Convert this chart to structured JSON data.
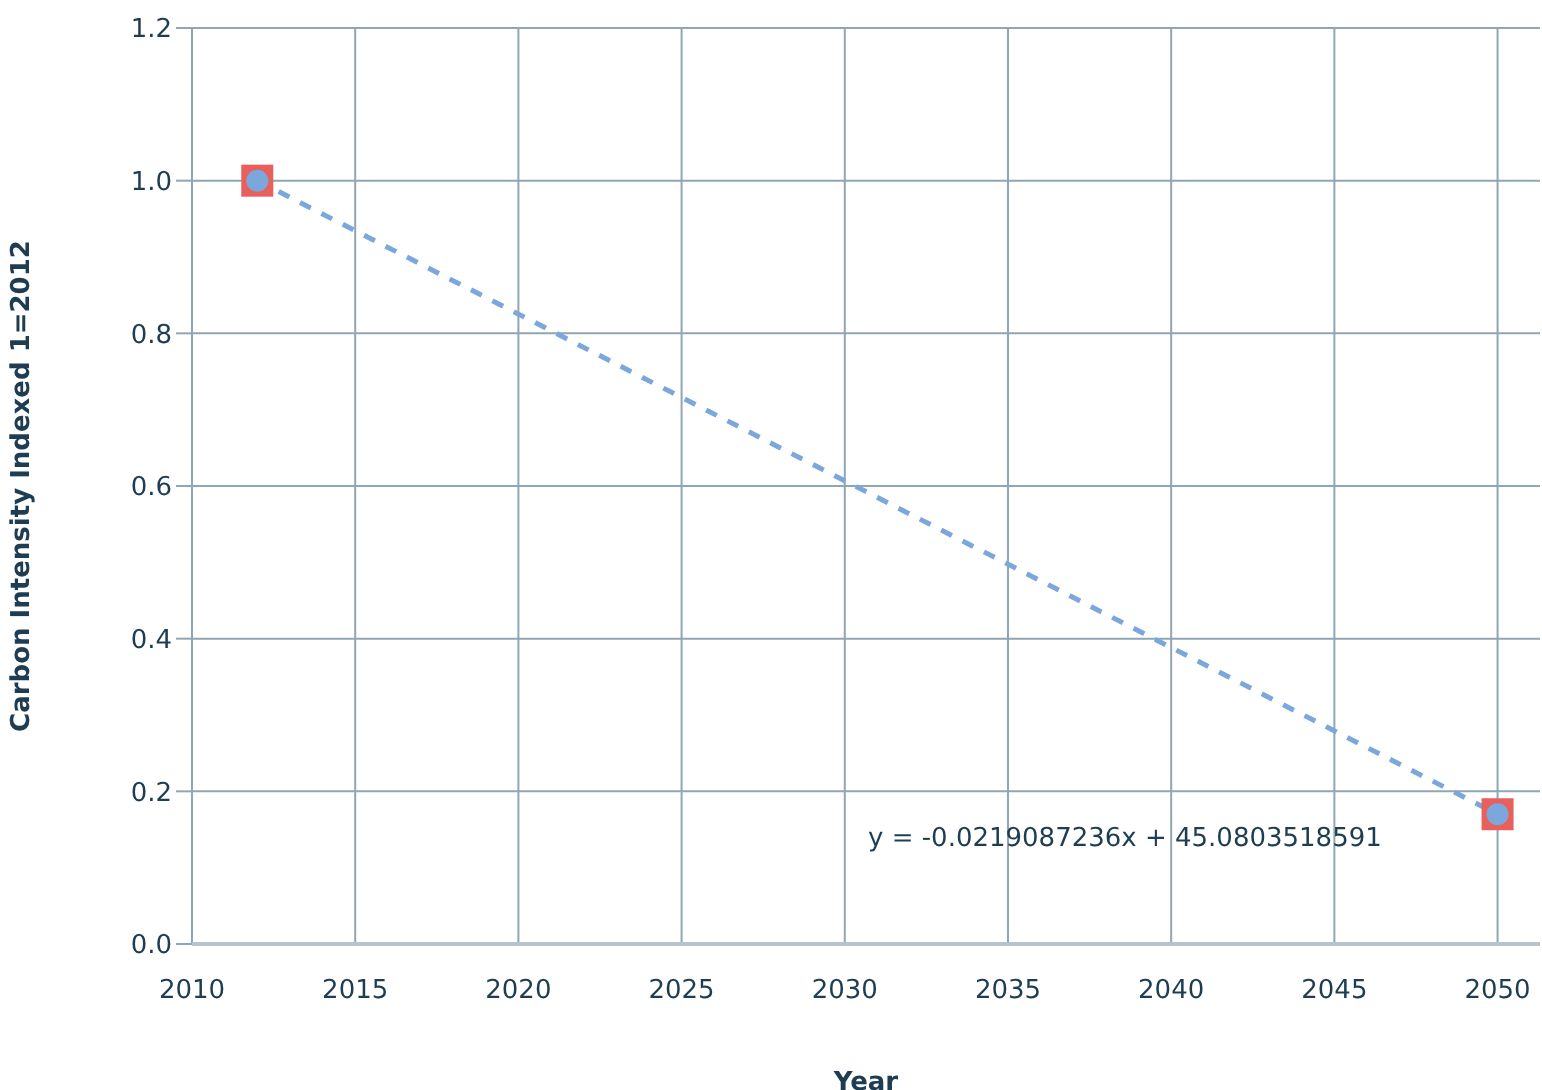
{
  "chart_data": {
    "type": "line",
    "xlabel": "Year",
    "ylabel": "Carbon Intensity Indexed    1=2012",
    "series": [
      {
        "color": "#7ba7dc",
        "marker": "circle",
        "line_style": "dashed",
        "x": [
          2012,
          2050
        ],
        "values": [
          1.0,
          0.17
        ]
      }
    ],
    "xlim": [
      2010,
      2051.3
    ],
    "xticks": [
      2010,
      2015,
      2020,
      2025,
      2030,
      2035,
      2040,
      2045,
      2050
    ],
    "ylim": [
      0,
      1.2
    ],
    "yticks": [
      {
        "value": 0,
        "label": "0.0"
      },
      {
        "value": 0.2,
        "label": "0.2"
      },
      {
        "value": 0.4,
        "label": "0.4"
      },
      {
        "value": 0.6,
        "label": "0.6"
      },
      {
        "value": 0.8,
        "label": "0.8"
      },
      {
        "value": 1.0,
        "label": "1.0"
      },
      {
        "value": 1.2,
        "label": "1.2"
      }
    ],
    "grid": true,
    "annotations": [
      "y = -0.0219087236x + 45.0803518591"
    ]
  }
}
